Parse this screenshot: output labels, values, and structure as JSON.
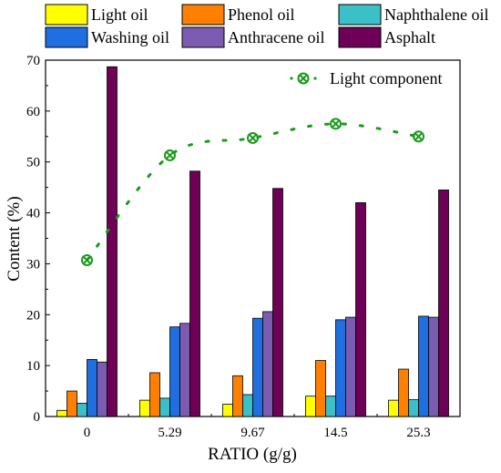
{
  "chart_data": {
    "type": "bar",
    "xlabel": "RATIO (g/g)",
    "ylabel": "Content (%)",
    "ylim": [
      0,
      70
    ],
    "yticks": [
      0,
      10,
      20,
      30,
      40,
      50,
      60,
      70
    ],
    "categories": [
      "0",
      "5.29",
      "9.67",
      "14.5",
      "25.3"
    ],
    "grid": false,
    "legend_placement": "top",
    "series": [
      {
        "name": "Light oil",
        "color": "#ffff00",
        "values": [
          1.2,
          3.2,
          2.4,
          4.0,
          3.2
        ]
      },
      {
        "name": "Phenol oil",
        "color": "#ff8000",
        "values": [
          5.0,
          8.6,
          8.0,
          11.0,
          9.3
        ]
      },
      {
        "name": "Naphthalene oil",
        "color": "#3cc0c8",
        "values": [
          2.6,
          3.6,
          4.3,
          4.0,
          3.3
        ]
      },
      {
        "name": "Washing oil",
        "color": "#1f6fe0",
        "values": [
          11.2,
          17.6,
          19.3,
          19.0,
          19.7
        ]
      },
      {
        "name": "Anthracene oil",
        "color": "#7c5cb0",
        "values": [
          10.7,
          18.3,
          20.6,
          19.5,
          19.5
        ]
      },
      {
        "name": "Asphalt",
        "color": "#6e0055",
        "values": [
          68.7,
          48.2,
          44.8,
          42.0,
          44.5
        ]
      }
    ],
    "line_series": {
      "name": "Light component",
      "color": "#1a9a1a",
      "marker": "circle-x",
      "style": "dotted",
      "legend_placement": "top-right",
      "values": [
        30.7,
        51.3,
        54.7,
        57.5,
        55.0
      ]
    }
  }
}
